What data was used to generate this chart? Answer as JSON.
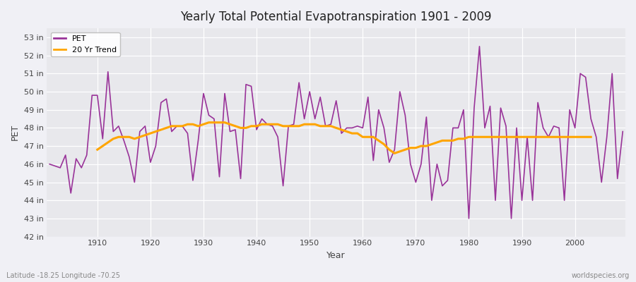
{
  "title": "Yearly Total Potential Evapotranspiration 1901 - 2009",
  "xlabel": "Year",
  "ylabel": "PET",
  "lat_lon_label": "Latitude -18.25 Longitude -70.25",
  "watermark": "worldspecies.org",
  "pet_color": "#993399",
  "trend_color": "#FFA500",
  "bg_color": "#e8e8ec",
  "fig_color": "#f0f0f5",
  "ylim": [
    42,
    53.5
  ],
  "yticks": [
    42,
    43,
    44,
    45,
    46,
    47,
    48,
    49,
    50,
    51,
    52,
    53
  ],
  "xticks": [
    1910,
    1920,
    1930,
    1940,
    1950,
    1960,
    1970,
    1980,
    1990,
    2000
  ],
  "years": [
    1901,
    1902,
    1903,
    1904,
    1905,
    1906,
    1907,
    1908,
    1909,
    1910,
    1911,
    1912,
    1913,
    1914,
    1915,
    1916,
    1917,
    1918,
    1919,
    1920,
    1921,
    1922,
    1923,
    1924,
    1925,
    1926,
    1927,
    1928,
    1929,
    1930,
    1931,
    1932,
    1933,
    1934,
    1935,
    1936,
    1937,
    1938,
    1939,
    1940,
    1941,
    1942,
    1943,
    1944,
    1945,
    1946,
    1947,
    1948,
    1949,
    1950,
    1951,
    1952,
    1953,
    1954,
    1955,
    1956,
    1957,
    1958,
    1959,
    1960,
    1961,
    1962,
    1963,
    1964,
    1965,
    1966,
    1967,
    1968,
    1969,
    1970,
    1971,
    1972,
    1973,
    1974,
    1975,
    1976,
    1977,
    1978,
    1979,
    1980,
    1981,
    1982,
    1983,
    1984,
    1985,
    1986,
    1987,
    1988,
    1989,
    1990,
    1991,
    1992,
    1993,
    1994,
    1995,
    1996,
    1997,
    1998,
    1999,
    2000,
    2001,
    2002,
    2003,
    2004,
    2005,
    2006,
    2007,
    2008,
    2009
  ],
  "pet_values": [
    46.0,
    45.9,
    45.8,
    46.5,
    44.4,
    46.3,
    45.8,
    46.5,
    49.8,
    49.8,
    47.4,
    51.1,
    47.8,
    48.1,
    47.3,
    46.4,
    45.0,
    47.8,
    48.1,
    46.1,
    47.0,
    49.4,
    49.6,
    47.8,
    48.1,
    48.1,
    47.7,
    45.1,
    47.3,
    49.9,
    48.7,
    48.5,
    45.3,
    49.9,
    47.8,
    47.9,
    45.2,
    50.4,
    50.3,
    47.9,
    48.5,
    48.2,
    48.1,
    47.5,
    44.8,
    48.1,
    48.2,
    50.5,
    48.5,
    50.0,
    48.5,
    49.7,
    48.1,
    48.2,
    49.5,
    47.7,
    48.0,
    48.0,
    48.1,
    48.0,
    49.7,
    46.2,
    49.0,
    48.0,
    46.1,
    46.8,
    50.0,
    48.7,
    46.0,
    45.0,
    46.0,
    48.6,
    44.0,
    46.0,
    44.8,
    45.1,
    48.0,
    48.0,
    49.0,
    43.0,
    49.1,
    52.5,
    48.0,
    49.2,
    44.0,
    49.1,
    48.1,
    43.0,
    48.0,
    44.0,
    47.5,
    44.0,
    49.4,
    48.0,
    47.5,
    48.1,
    48.0,
    44.0,
    49.0,
    48.0,
    51.0,
    50.8,
    48.5,
    47.5,
    45.0,
    47.5,
    51.0,
    45.2,
    47.8
  ],
  "trend_values": [
    null,
    null,
    null,
    null,
    null,
    null,
    null,
    null,
    null,
    46.8,
    47.0,
    47.2,
    47.4,
    47.5,
    47.5,
    47.5,
    47.4,
    47.5,
    47.6,
    47.7,
    47.8,
    47.9,
    48.0,
    48.1,
    48.1,
    48.1,
    48.2,
    48.2,
    48.1,
    48.2,
    48.3,
    48.3,
    48.3,
    48.3,
    48.2,
    48.1,
    48.0,
    48.0,
    48.1,
    48.1,
    48.2,
    48.2,
    48.2,
    48.2,
    48.1,
    48.1,
    48.1,
    48.1,
    48.2,
    48.2,
    48.2,
    48.1,
    48.1,
    48.1,
    48.0,
    47.9,
    47.8,
    47.7,
    47.7,
    47.5,
    47.5,
    47.5,
    47.3,
    47.1,
    46.8,
    46.6,
    46.7,
    46.8,
    46.9,
    46.9,
    47.0,
    47.0,
    47.1,
    47.2,
    47.3,
    47.3,
    47.3,
    47.4,
    47.4,
    47.5,
    47.5,
    47.5,
    47.5,
    47.5,
    47.5,
    47.5,
    47.5,
    47.5,
    47.5,
    47.5,
    47.5,
    47.5,
    47.5,
    47.5,
    47.5,
    47.5,
    47.5,
    47.5,
    47.5,
    47.5,
    47.5,
    47.5,
    47.5,
    null
  ]
}
